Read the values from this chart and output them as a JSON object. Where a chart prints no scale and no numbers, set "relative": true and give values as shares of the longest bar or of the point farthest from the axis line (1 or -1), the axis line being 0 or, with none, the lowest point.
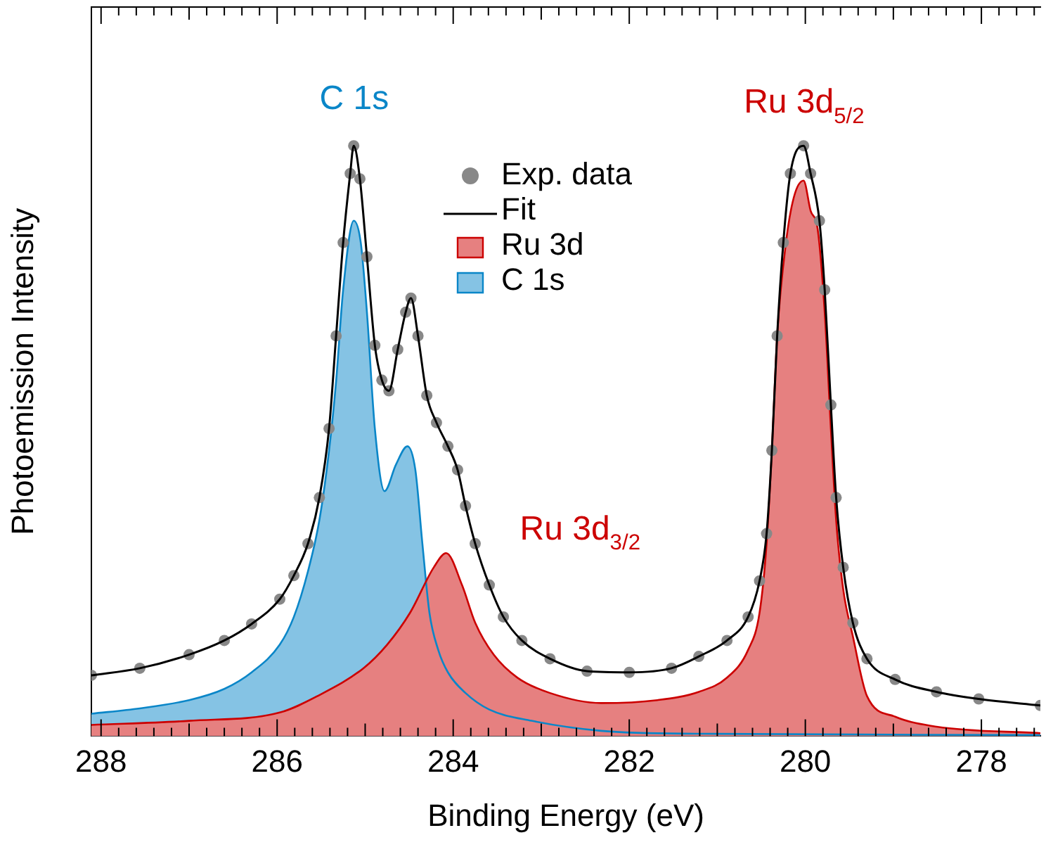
{
  "chart_data": {
    "type": "area",
    "relative": true,
    "xlabel": "Binding Energy (eV)",
    "ylabel": "Photoemission Intensity",
    "xlim": [
      288.11,
      277.33
    ],
    "xticks": [
      288,
      {
        "value": 287.8,
        "label": null
      },
      {
        "value": 287.6,
        "label": null
      },
      {
        "value": 287.4,
        "label": null
      },
      {
        "value": 287.2,
        "label": null
      },
      {
        "value": 287,
        "label": null
      },
      {
        "value": 286.8,
        "label": null
      },
      {
        "value": 286.6,
        "label": null
      },
      {
        "value": 286.4,
        "label": null
      },
      {
        "value": 286.2,
        "label": null
      },
      286,
      {
        "value": 285.8,
        "label": null
      },
      {
        "value": 285.6,
        "label": null
      },
      {
        "value": 285.4,
        "label": null
      },
      {
        "value": 285.2,
        "label": null
      },
      {
        "value": 285,
        "label": null
      },
      {
        "value": 284.8,
        "label": null
      },
      {
        "value": 284.6,
        "label": null
      },
      {
        "value": 284.4,
        "label": null
      },
      {
        "value": 284.2,
        "label": null
      },
      284,
      {
        "value": 283.8,
        "label": null
      },
      {
        "value": 283.6,
        "label": null
      },
      {
        "value": 283.4,
        "label": null
      },
      {
        "value": 283.2,
        "label": null
      },
      {
        "value": 283,
        "label": null
      },
      {
        "value": 282.8,
        "label": null
      },
      {
        "value": 282.6,
        "label": null
      },
      {
        "value": 282.4,
        "label": null
      },
      {
        "value": 282.2,
        "label": null
      },
      282,
      {
        "value": 281.8,
        "label": null
      },
      {
        "value": 281.6,
        "label": null
      },
      {
        "value": 281.4,
        "label": null
      },
      {
        "value": 281.2,
        "label": null
      },
      {
        "value": 281,
        "label": null
      },
      {
        "value": 280.8,
        "label": null
      },
      {
        "value": 280.6,
        "label": null
      },
      {
        "value": 280.4,
        "label": null
      },
      {
        "value": 280.2,
        "label": null
      },
      280,
      {
        "value": 279.8,
        "label": null
      },
      {
        "value": 279.6,
        "label": null
      },
      {
        "value": 279.4,
        "label": null
      },
      {
        "value": 279.2,
        "label": null
      },
      {
        "value": 279,
        "label": null
      },
      {
        "value": 278.8,
        "label": null
      },
      {
        "value": 278.6,
        "label": null
      },
      {
        "value": 278.4,
        "label": null
      },
      {
        "value": 278.2,
        "label": null
      },
      278,
      {
        "value": 277.8,
        "label": null
      },
      {
        "value": 277.6,
        "label": null
      },
      {
        "value": 277.4,
        "label": null
      }
    ],
    "legend": "top",
    "line_style": "solid",
    "grid": false,
    "annotations": [
      "C 1s",
      "Ru 3d$_{5/2}$",
      "Ru 3d$_{3/2}$"
    ],
    "series": [
      {
        "name": "Exp. data",
        "type": "scatter",
        "marker": "circle",
        "color": "#888888",
        "x": [
          288.11,
          287.56,
          287.0,
          286.6,
          286.29,
          285.97,
          285.81,
          285.65,
          285.52,
          285.41,
          285.33,
          285.25,
          285.17,
          285.13,
          285.06,
          284.98,
          284.89,
          284.81,
          284.73,
          284.63,
          284.54,
          284.48,
          284.4,
          284.3,
          284.19,
          284.06,
          283.95,
          283.86,
          283.75,
          283.59,
          283.43,
          283.22,
          282.9,
          282.48,
          282.0,
          281.52,
          281.21,
          280.89,
          280.65,
          280.52,
          280.44,
          280.38,
          280.32,
          280.25,
          280.17,
          280.02,
          279.94,
          279.84,
          279.78,
          279.71,
          279.65,
          279.57,
          279.46,
          279.3,
          278.98,
          278.51,
          278.03,
          277.33
        ],
        "values": [
          0.103,
          0.115,
          0.138,
          0.162,
          0.19,
          0.232,
          0.272,
          0.326,
          0.404,
          0.521,
          0.678,
          0.836,
          0.953,
          1,
          0.944,
          0.812,
          0.662,
          0.603,
          0.585,
          0.655,
          0.718,
          0.742,
          0.678,
          0.577,
          0.531,
          0.491,
          0.451,
          0.39,
          0.326,
          0.256,
          0.202,
          0.162,
          0.131,
          0.11,
          0.108,
          0.115,
          0.135,
          0.162,
          0.202,
          0.263,
          0.343,
          0.484,
          0.678,
          0.836,
          0.953,
          1,
          0.953,
          0.873,
          0.756,
          0.561,
          0.404,
          0.286,
          0.192,
          0.131,
          0.096,
          0.075,
          0.063,
          0.052
        ]
      },
      {
        "name": "Fit",
        "type": "line",
        "color": "#000000",
        "x": [
          288.11,
          287.56,
          287.0,
          286.6,
          286.29,
          285.97,
          285.81,
          285.65,
          285.52,
          285.41,
          285.33,
          285.25,
          285.17,
          285.13,
          285.06,
          284.98,
          284.89,
          284.81,
          284.73,
          284.63,
          284.54,
          284.48,
          284.4,
          284.3,
          284.19,
          284.06,
          283.95,
          283.86,
          283.75,
          283.59,
          283.43,
          283.22,
          282.9,
          282.48,
          282.0,
          281.52,
          281.21,
          280.89,
          280.65,
          280.52,
          280.44,
          280.38,
          280.32,
          280.25,
          280.17,
          280.02,
          279.94,
          279.84,
          279.78,
          279.71,
          279.65,
          279.57,
          279.46,
          279.3,
          278.98,
          278.51,
          278.03,
          277.33
        ],
        "values": [
          0.103,
          0.115,
          0.138,
          0.162,
          0.19,
          0.232,
          0.272,
          0.326,
          0.404,
          0.521,
          0.678,
          0.836,
          0.953,
          1,
          0.944,
          0.812,
          0.662,
          0.603,
          0.585,
          0.655,
          0.718,
          0.742,
          0.678,
          0.577,
          0.531,
          0.491,
          0.451,
          0.39,
          0.326,
          0.256,
          0.202,
          0.162,
          0.131,
          0.11,
          0.108,
          0.115,
          0.135,
          0.162,
          0.202,
          0.263,
          0.343,
          0.484,
          0.678,
          0.836,
          0.953,
          1,
          0.953,
          0.873,
          0.756,
          0.561,
          0.404,
          0.286,
          0.192,
          0.131,
          0.096,
          0.075,
          0.063,
          0.052
        ]
      },
      {
        "name": "Ru 3d",
        "color": "#cc0000",
        "x": [
          288.11,
          287.0,
          285.97,
          285.54,
          285.02,
          284.75,
          284.49,
          284.22,
          284.08,
          283.9,
          283.75,
          283.54,
          283.27,
          282.9,
          282.32,
          281.68,
          281.21,
          280.89,
          280.65,
          280.52,
          280.44,
          280.38,
          280.32,
          280.22,
          280.13,
          280.02,
          279.94,
          279.86,
          279.78,
          279.71,
          279.65,
          279.57,
          279.46,
          279.3,
          278.98,
          278.51,
          277.33
        ],
        "values": [
          0.019,
          0.026,
          0.04,
          0.068,
          0.115,
          0.155,
          0.209,
          0.286,
          0.31,
          0.256,
          0.192,
          0.138,
          0.099,
          0.073,
          0.056,
          0.061,
          0.075,
          0.099,
          0.146,
          0.209,
          0.326,
          0.484,
          0.678,
          0.836,
          0.913,
          0.941,
          0.89,
          0.859,
          0.718,
          0.521,
          0.366,
          0.249,
          0.169,
          0.068,
          0.033,
          0.016,
          0.005
        ]
      },
      {
        "name": "C 1s",
        "color": "#0a86c8",
        "x": [
          288.11,
          287.56,
          287.0,
          286.6,
          286.29,
          285.97,
          285.81,
          285.65,
          285.52,
          285.41,
          285.33,
          285.25,
          285.13,
          285.05,
          284.98,
          284.89,
          284.78,
          284.65,
          284.52,
          284.43,
          284.35,
          284.27,
          284.17,
          284.06,
          283.86,
          283.59,
          283.11,
          282.32,
          281.21,
          277.33
        ],
        "values": [
          0.038,
          0.047,
          0.061,
          0.08,
          0.108,
          0.155,
          0.202,
          0.279,
          0.366,
          0.484,
          0.601,
          0.756,
          0.873,
          0.836,
          0.718,
          0.521,
          0.415,
          0.46,
          0.491,
          0.451,
          0.326,
          0.209,
          0.146,
          0.108,
          0.073,
          0.045,
          0.026,
          0.009,
          0.004,
          0.002
        ]
      }
    ]
  }
}
